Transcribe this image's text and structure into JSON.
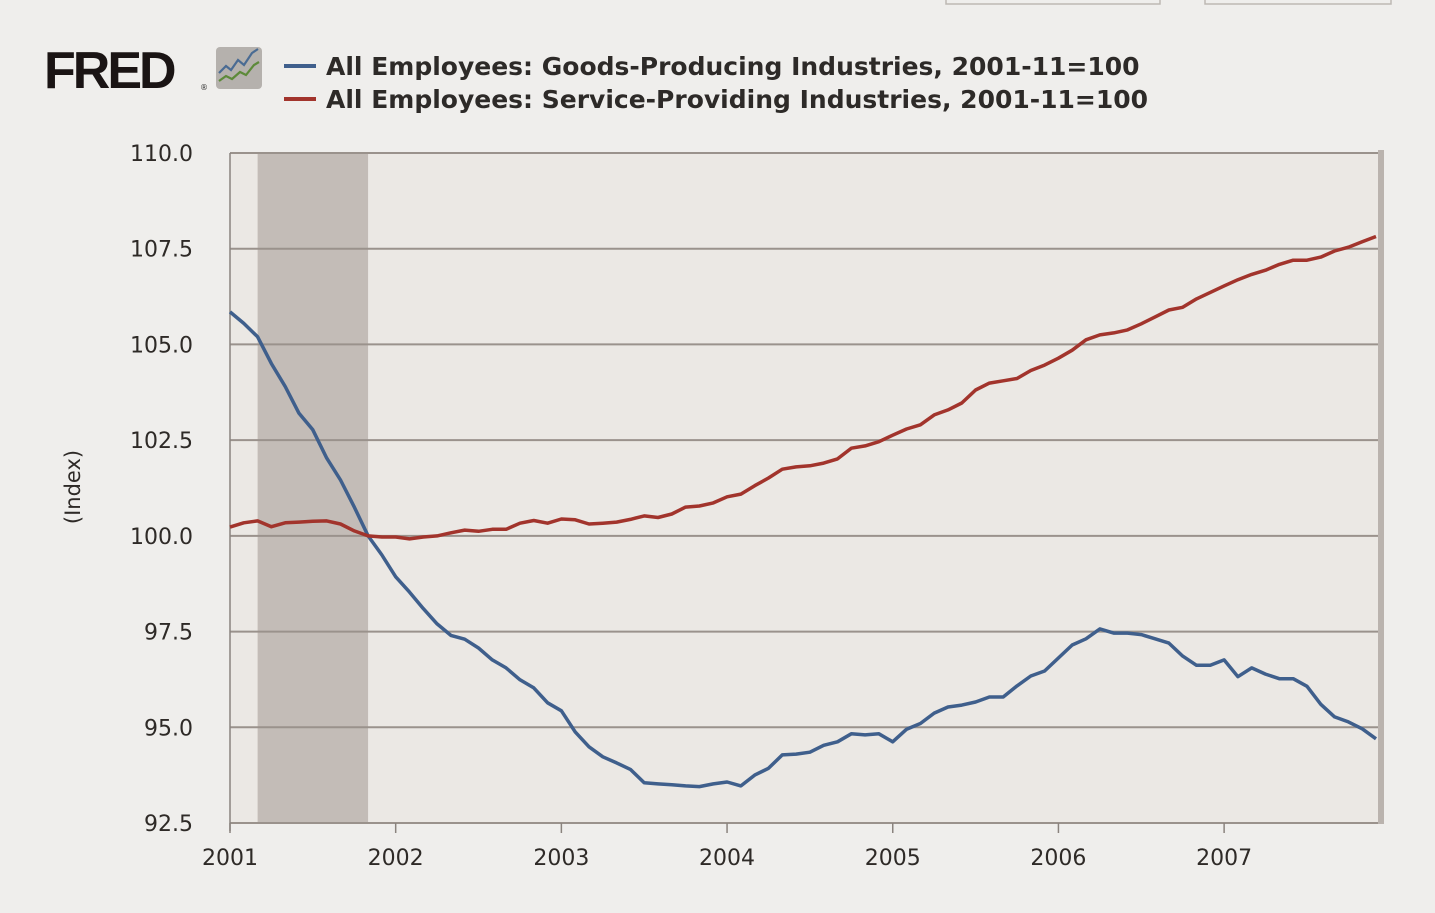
{
  "logo": {
    "text": "FRED",
    "registered": "®"
  },
  "chart_data": {
    "type": "line",
    "title": "",
    "xlabel": "",
    "ylabel": "(Index)",
    "ylim": [
      92.5,
      110.0
    ],
    "xlim": [
      "2001-01",
      "2007-12"
    ],
    "grid": "horizontal",
    "legend_position": "top",
    "yticks": [
      "92.5",
      "95.0",
      "97.5",
      "100.0",
      "102.5",
      "105.0",
      "107.5",
      "110.0"
    ],
    "xticks": [
      "2001",
      "2002",
      "2003",
      "2004",
      "2005",
      "2006",
      "2007"
    ],
    "recessions": [
      {
        "start": "2001-03",
        "end": "2001-11"
      }
    ],
    "x_start": "2001-01",
    "frequency": "monthly",
    "series": [
      {
        "name": "All Employees: Goods-Producing Industries, 2001-11=100",
        "color": "#3f5f8c",
        "values": [
          105.85,
          105.55,
          105.2,
          104.5,
          103.9,
          103.2,
          102.77,
          102.03,
          101.46,
          100.75,
          100.0,
          99.5,
          98.93,
          98.53,
          98.1,
          97.7,
          97.4,
          97.3,
          97.07,
          96.76,
          96.55,
          96.24,
          96.03,
          95.64,
          95.43,
          94.88,
          94.49,
          94.23,
          94.07,
          93.9,
          93.55,
          93.52,
          93.5,
          93.47,
          93.45,
          93.52,
          93.57,
          93.47,
          93.75,
          93.93,
          94.28,
          94.3,
          94.35,
          94.53,
          94.62,
          94.83,
          94.8,
          94.83,
          94.62,
          94.95,
          95.1,
          95.37,
          95.53,
          95.58,
          95.66,
          95.79,
          95.79,
          96.08,
          96.34,
          96.47,
          96.81,
          97.15,
          97.31,
          97.57,
          97.46,
          97.46,
          97.42,
          97.31,
          97.2,
          96.86,
          96.62,
          96.62,
          96.76,
          96.32,
          96.55,
          96.39,
          96.27,
          96.27,
          96.07,
          95.6,
          95.27,
          95.14,
          94.96,
          94.7
        ]
      },
      {
        "name": "All Employees: Service-Providing Industries, 2001-11=100",
        "color": "#a2342c",
        "values": [
          100.23,
          100.34,
          100.39,
          100.24,
          100.34,
          100.36,
          100.38,
          100.39,
          100.31,
          100.13,
          100.0,
          99.97,
          99.97,
          99.92,
          99.97,
          100.0,
          100.08,
          100.15,
          100.12,
          100.17,
          100.17,
          100.33,
          100.4,
          100.33,
          100.44,
          100.42,
          100.31,
          100.33,
          100.36,
          100.43,
          100.52,
          100.48,
          100.57,
          100.75,
          100.78,
          100.86,
          101.02,
          101.09,
          101.31,
          101.51,
          101.74,
          101.8,
          101.83,
          101.9,
          102.01,
          102.29,
          102.35,
          102.46,
          102.63,
          102.79,
          102.9,
          103.16,
          103.29,
          103.47,
          103.81,
          103.99,
          104.05,
          104.11,
          104.32,
          104.46,
          104.64,
          104.85,
          105.12,
          105.25,
          105.3,
          105.38,
          105.54,
          105.72,
          105.9,
          105.97,
          106.19,
          106.36,
          106.53,
          106.69,
          106.83,
          106.94,
          107.09,
          107.2,
          107.2,
          107.28,
          107.44,
          107.54,
          107.68,
          107.82
        ]
      }
    ]
  },
  "colors": {
    "plot_bg": "#ebe8e4",
    "grid": "#9a928c",
    "recession": "#c3bcb7"
  }
}
